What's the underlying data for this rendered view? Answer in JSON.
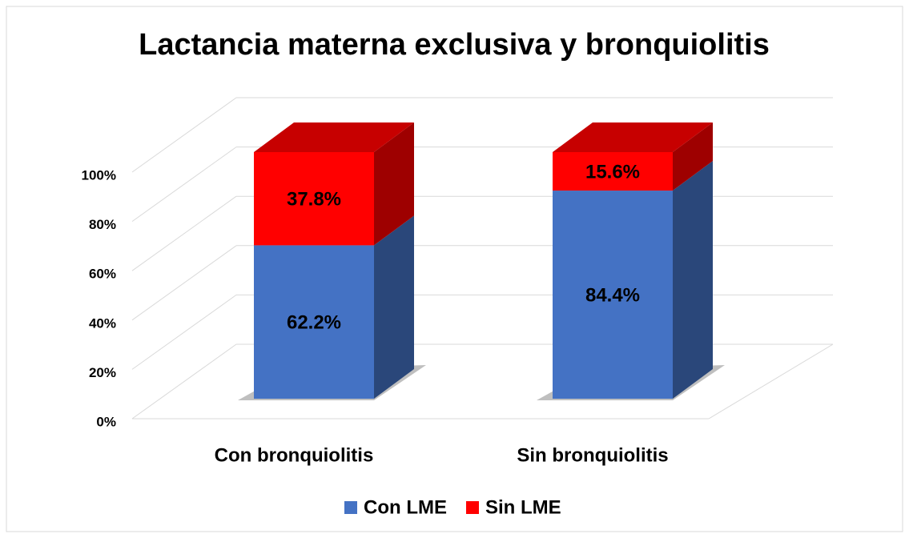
{
  "chart_data": {
    "type": "bar",
    "stacked": true,
    "title": "Lactancia materna exclusiva y bronquiolitis",
    "categories": [
      "Con bronquiolitis",
      "Sin bronquiolitis"
    ],
    "series": [
      {
        "name": "Con LME",
        "color": "#4472c4",
        "values": [
          62.2,
          84.4
        ],
        "value_labels": [
          "62.2%",
          "84.4%"
        ]
      },
      {
        "name": "Sin LME",
        "color": "#ff0000",
        "values": [
          37.8,
          15.6
        ],
        "value_labels": [
          "37.8%",
          "15.6%"
        ]
      }
    ],
    "ylim": [
      0,
      100
    ],
    "yticks": [
      {
        "value": 0,
        "label": "0%"
      },
      {
        "value": 20,
        "label": "20%"
      },
      {
        "value": 40,
        "label": "40%"
      },
      {
        "value": 60,
        "label": "60%"
      },
      {
        "value": 80,
        "label": "80%"
      },
      {
        "value": 100,
        "label": "100%"
      }
    ],
    "grid": true,
    "legend": "bottom"
  }
}
